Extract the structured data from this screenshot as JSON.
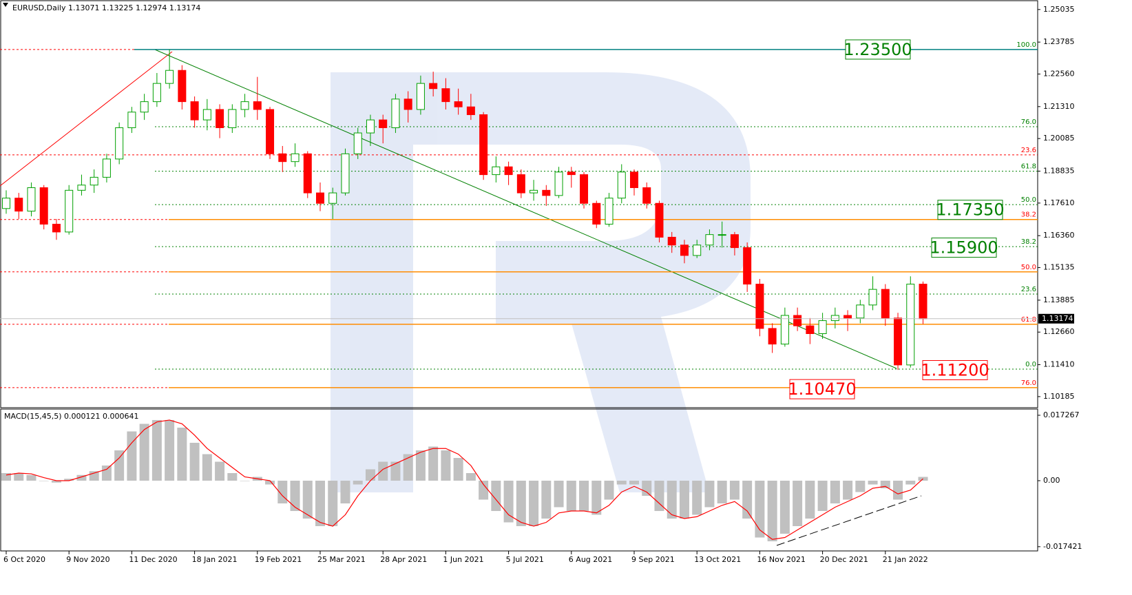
{
  "chart_data": {
    "type": "candlestick",
    "title": "EURUSD,Daily  1.13071 1.13225 1.12974 1.13174",
    "categories": [
      "6 Oct 2020",
      null,
      null,
      null,
      null,
      "9 Nov 2020",
      null,
      null,
      null,
      null,
      "11 Dec 2020",
      null,
      null,
      null,
      null,
      "18 Jan 2021",
      null,
      null,
      null,
      null,
      "19 Feb 2021",
      null,
      null,
      null,
      null,
      "25 Mar 2021",
      null,
      null,
      null,
      null,
      "28 Apr 2021",
      null,
      null,
      null,
      null,
      "1 Jun 2021",
      null,
      null,
      null,
      null,
      "5 Jul 2021",
      null,
      null,
      null,
      null,
      "6 Aug 2021",
      null,
      null,
      null,
      null,
      "9 Sep 2021",
      null,
      null,
      null,
      null,
      "13 Oct 2021",
      null,
      null,
      null,
      null,
      "16 Nov 2021",
      null,
      null,
      null,
      null,
      "20 Dec 2021",
      null,
      null,
      null,
      null,
      "21 Jan 2022",
      null,
      null,
      null
    ],
    "ohlc": [
      [
        1.174,
        1.181,
        1.172,
        1.178
      ],
      [
        1.178,
        1.18,
        1.17,
        1.173
      ],
      [
        1.173,
        1.184,
        1.171,
        1.182
      ],
      [
        1.182,
        1.183,
        1.166,
        1.168
      ],
      [
        1.168,
        1.17,
        1.162,
        1.165
      ],
      [
        1.165,
        1.183,
        1.164,
        1.181
      ],
      [
        1.181,
        1.187,
        1.179,
        1.183
      ],
      [
        1.183,
        1.189,
        1.18,
        1.186
      ],
      [
        1.186,
        1.195,
        1.184,
        1.193
      ],
      [
        1.193,
        1.207,
        1.191,
        1.205
      ],
      [
        1.205,
        1.213,
        1.203,
        1.211
      ],
      [
        1.211,
        1.218,
        1.208,
        1.215
      ],
      [
        1.215,
        1.226,
        1.213,
        1.222
      ],
      [
        1.222,
        1.235,
        1.22,
        1.227
      ],
      [
        1.227,
        1.229,
        1.212,
        1.215
      ],
      [
        1.215,
        1.217,
        1.205,
        1.208
      ],
      [
        1.208,
        1.216,
        1.204,
        1.212
      ],
      [
        1.212,
        1.214,
        1.201,
        1.205
      ],
      [
        1.205,
        1.214,
        1.203,
        1.212
      ],
      [
        1.212,
        1.218,
        1.209,
        1.215
      ],
      [
        1.215,
        1.2245,
        1.208,
        1.212
      ],
      [
        1.212,
        1.213,
        1.193,
        1.195
      ],
      [
        1.195,
        1.198,
        1.188,
        1.192
      ],
      [
        1.192,
        1.199,
        1.19,
        1.195
      ],
      [
        1.195,
        1.196,
        1.178,
        1.18
      ],
      [
        1.18,
        1.184,
        1.173,
        1.176
      ],
      [
        1.176,
        1.182,
        1.17,
        1.18
      ],
      [
        1.18,
        1.197,
        1.179,
        1.195
      ],
      [
        1.195,
        1.205,
        1.193,
        1.203
      ],
      [
        1.203,
        1.21,
        1.198,
        1.208
      ],
      [
        1.208,
        1.21,
        1.199,
        1.205
      ],
      [
        1.205,
        1.218,
        1.203,
        1.216
      ],
      [
        1.216,
        1.219,
        1.207,
        1.212
      ],
      [
        1.212,
        1.225,
        1.21,
        1.222
      ],
      [
        1.222,
        1.2265,
        1.217,
        1.22
      ],
      [
        1.22,
        1.224,
        1.212,
        1.215
      ],
      [
        1.215,
        1.22,
        1.21,
        1.213
      ],
      [
        1.213,
        1.218,
        1.208,
        1.21
      ],
      [
        1.21,
        1.211,
        1.185,
        1.187
      ],
      [
        1.187,
        1.194,
        1.184,
        1.19
      ],
      [
        1.19,
        1.192,
        1.183,
        1.187
      ],
      [
        1.187,
        1.189,
        1.178,
        1.18
      ],
      [
        1.18,
        1.185,
        1.177,
        1.181
      ],
      [
        1.181,
        1.183,
        1.175,
        1.179
      ],
      [
        1.179,
        1.19,
        1.178,
        1.188
      ],
      [
        1.188,
        1.19,
        1.182,
        1.187
      ],
      [
        1.187,
        1.188,
        1.174,
        1.176
      ],
      [
        1.176,
        1.177,
        1.1665,
        1.168
      ],
      [
        1.168,
        1.18,
        1.167,
        1.178
      ],
      [
        1.178,
        1.191,
        1.176,
        1.188
      ],
      [
        1.188,
        1.189,
        1.179,
        1.182
      ],
      [
        1.182,
        1.184,
        1.174,
        1.176
      ],
      [
        1.176,
        1.177,
        1.161,
        1.163
      ],
      [
        1.163,
        1.165,
        1.157,
        1.16
      ],
      [
        1.16,
        1.162,
        1.153,
        1.156
      ],
      [
        1.156,
        1.162,
        1.155,
        1.16
      ],
      [
        1.16,
        1.166,
        1.158,
        1.164
      ],
      [
        1.164,
        1.169,
        1.159,
        1.164
      ],
      [
        1.164,
        1.165,
        1.156,
        1.159
      ],
      [
        1.159,
        1.161,
        1.142,
        1.145
      ],
      [
        1.145,
        1.147,
        1.125,
        1.128
      ],
      [
        1.128,
        1.13,
        1.1186,
        1.122
      ],
      [
        1.122,
        1.136,
        1.121,
        1.133
      ],
      [
        1.133,
        1.136,
        1.127,
        1.129
      ],
      [
        1.129,
        1.132,
        1.122,
        1.126
      ],
      [
        1.126,
        1.134,
        1.124,
        1.131
      ],
      [
        1.131,
        1.136,
        1.128,
        1.133
      ],
      [
        1.133,
        1.135,
        1.127,
        1.132
      ],
      [
        1.132,
        1.139,
        1.13,
        1.137
      ],
      [
        1.137,
        1.148,
        1.135,
        1.143
      ],
      [
        1.143,
        1.145,
        1.129,
        1.132
      ],
      [
        1.132,
        1.134,
        1.1121,
        1.114
      ],
      [
        1.114,
        1.148,
        1.113,
        1.145
      ],
      [
        1.145,
        1.146,
        1.1297,
        1.13174
      ]
    ],
    "up_color": "#00a000",
    "down_color": "#ff0000",
    "ylim": [
      1.0976,
      1.254
    ],
    "yticks": [
      1.25035,
      1.23785,
      {
        "value": 1.2256,
        "label": "1.22560"
      },
      {
        "value": 1.2131,
        "label": "1.21310"
      },
      1.20085,
      1.18835,
      {
        "value": 1.1761,
        "label": "1.17610"
      },
      {
        "value": 1.1636,
        "label": "1.16360"
      },
      1.15135,
      1.13885,
      {
        "value": 1.1266,
        "label": "1.12660"
      },
      {
        "value": 1.1141,
        "label": "1.11410"
      },
      1.10185
    ],
    "levels": [
      {
        "value": 1.235,
        "label": "100.0",
        "color": "teal"
      },
      {
        "value": 1.2054,
        "label": "76.0",
        "color": "green"
      },
      {
        "value": 1.1946,
        "label": "23.6",
        "color": "red"
      },
      {
        "value": 1.1883,
        "label": "61.8",
        "color": "green"
      },
      {
        "value": 1.1755,
        "label": "50.0",
        "color": "green"
      },
      {
        "value": 1.1698,
        "label": "38.2",
        "color": "orange"
      },
      {
        "value": 1.1594,
        "label": "38.2",
        "color": "green"
      },
      {
        "value": 1.1497,
        "label": "50.0",
        "color": "orange"
      },
      {
        "value": 1.1412,
        "label": "23.6",
        "color": "green"
      },
      {
        "value": 1.1296,
        "label": "61.8",
        "color": "orange"
      },
      {
        "value": 1.1124,
        "label": "0.0",
        "color": "green"
      },
      {
        "value": 1.1053,
        "label": "76.0",
        "color": "orange"
      }
    ],
    "price_boxes": [
      {
        "value": 1.235,
        "label": "1.23500",
        "color": "green"
      },
      {
        "value": 1.1735,
        "label": "1.17350",
        "color": "green"
      },
      {
        "value": 1.159,
        "label": "1.15900",
        "color": "green"
      },
      {
        "value": 1.112,
        "label": "1.11200",
        "color": "red"
      },
      {
        "value": 1.1047,
        "label": "1.10470",
        "color": "red"
      }
    ],
    "price_tag": {
      "value": 1.13174,
      "label": "1.13174"
    },
    "macd": {
      "title": "MACD(15,45,5) 0.000121 0.000641",
      "ylim": [
        -0.01854,
        0.0189
      ],
      "yticks": [
        0.017267,
        {
          "value": 0,
          "label": "0.00"
        },
        -0.017421
      ],
      "histogram": [
        0.002,
        0.002,
        0.0015,
        0,
        -0.0005,
        0.0005,
        0.0015,
        0.0025,
        0.004,
        0.008,
        0.013,
        0.015,
        0.016,
        0.016,
        0.014,
        0.01,
        0.007,
        0.005,
        0.002,
        0,
        0.001,
        -0.001,
        -0.006,
        -0.008,
        -0.01,
        -0.012,
        -0.012,
        -0.006,
        -0.001,
        0.003,
        0.005,
        0.005,
        0.007,
        0.008,
        0.009,
        0.008,
        0.006,
        0.002,
        -0.005,
        -0.008,
        -0.011,
        -0.012,
        -0.012,
        -0.01,
        -0.007,
        -0.008,
        -0.008,
        -0.009,
        -0.005,
        -0.001,
        -0.001,
        -0.004,
        -0.008,
        -0.01,
        -0.01,
        -0.009,
        -0.007,
        -0.006,
        -0.005,
        -0.01,
        -0.015,
        -0.016,
        -0.014,
        -0.012,
        -0.01,
        -0.008,
        -0.006,
        -0.005,
        -0.003,
        -0.001,
        -0.002,
        -0.005,
        -0.001,
        0.001
      ],
      "signal": [
        0.0015,
        0.002,
        0.0018,
        0.0008,
        0,
        0,
        0.001,
        0.002,
        0.003,
        0.006,
        0.01,
        0.0135,
        0.0155,
        0.016,
        0.015,
        0.012,
        0.0085,
        0.006,
        0.0035,
        0.001,
        0.0005,
        0,
        -0.004,
        -0.007,
        -0.009,
        -0.011,
        -0.012,
        -0.009,
        -0.004,
        0,
        0.003,
        0.0045,
        0.006,
        0.0075,
        0.0085,
        0.0085,
        0.007,
        0.004,
        -0.001,
        -0.005,
        -0.009,
        -0.011,
        -0.012,
        -0.011,
        -0.0085,
        -0.008,
        -0.008,
        -0.0085,
        -0.0065,
        -0.003,
        -0.0015,
        -0.003,
        -0.006,
        -0.009,
        -0.01,
        -0.0095,
        -0.008,
        -0.0065,
        -0.0055,
        -0.008,
        -0.013,
        -0.0155,
        -0.015,
        -0.013,
        -0.011,
        -0.009,
        -0.007,
        -0.0055,
        -0.004,
        -0.002,
        -0.0015,
        -0.0035,
        -0.0025,
        0.0005
      ],
      "histogram_color": "#c0c0c0",
      "signal_color": "#ff0000"
    }
  }
}
